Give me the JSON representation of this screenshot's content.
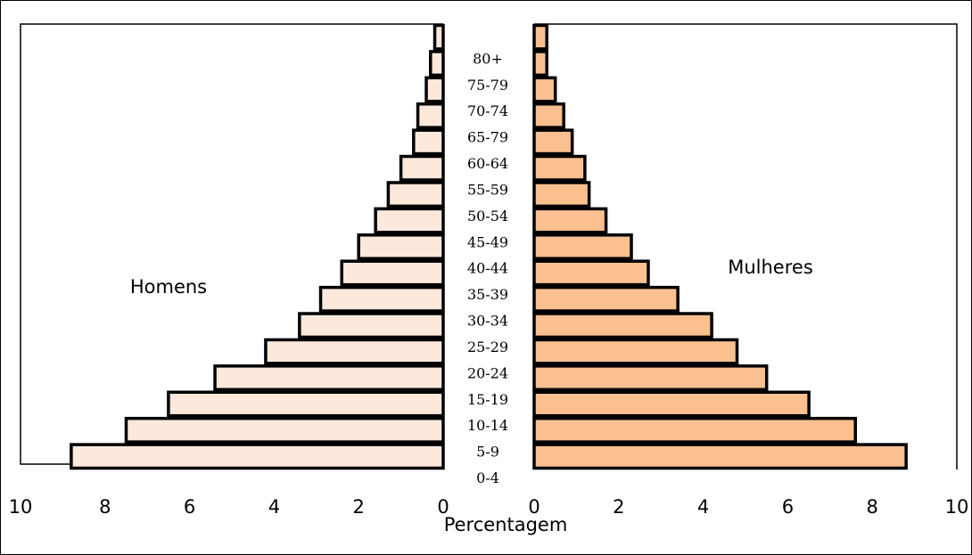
{
  "chart_data": {
    "type": "bar",
    "orientation": "horizontal",
    "layout": "population-pyramid",
    "xlabel": "Percentagem",
    "categories": [
      "0-4",
      "5-9",
      "10-14",
      "15-19",
      "20-24",
      "25-29",
      "30-34",
      "35-39",
      "40-44",
      "45-49",
      "50-54",
      "55-59",
      "60-64",
      "65-79",
      "70-74",
      "75-79",
      "80+"
    ],
    "x_ticks_left": [
      "10",
      "8",
      "6",
      "4",
      "2",
      "0"
    ],
    "x_ticks_right": [
      "0",
      "2",
      "4",
      "6",
      "8",
      "10"
    ],
    "xlim": [
      0,
      10
    ],
    "grid": false,
    "series": [
      {
        "name": "Homens",
        "side": "left",
        "color": "#fde9dc",
        "values": [
          8.8,
          7.5,
          6.5,
          5.4,
          4.2,
          3.4,
          2.9,
          2.4,
          2.0,
          1.6,
          1.3,
          1.0,
          0.7,
          0.6,
          0.4,
          0.3,
          0.2
        ]
      },
      {
        "name": "Mulheres",
        "side": "right",
        "color": "#fac090",
        "values": [
          8.8,
          7.6,
          6.5,
          5.5,
          4.8,
          4.2,
          3.4,
          2.7,
          2.3,
          1.7,
          1.3,
          1.2,
          0.9,
          0.7,
          0.5,
          0.3,
          0.3
        ]
      }
    ]
  }
}
